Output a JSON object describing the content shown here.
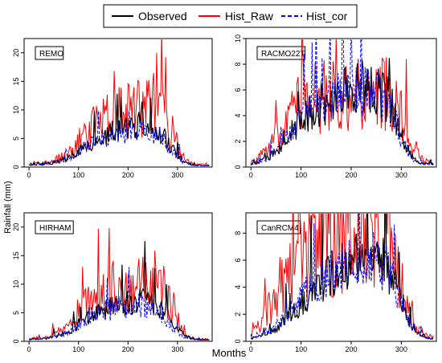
{
  "legend": {
    "entries": [
      {
        "label": "Observed",
        "color": "#000000",
        "dash": "solid"
      },
      {
        "label": "Hist_Raw",
        "color": "#ff0000",
        "dash": "solid"
      },
      {
        "label": "Hist_cor",
        "color": "#0000ff",
        "dash": "dashed"
      }
    ]
  },
  "ylabel": "Rainfall (mm)",
  "xlabel": "Months",
  "chart_data": [
    {
      "type": "line",
      "title": "REMO",
      "xlim": [
        -10,
        370
      ],
      "ylim": [
        0,
        22.5
      ],
      "xticks": [
        0,
        100,
        200,
        300
      ],
      "yticks": [
        0,
        5,
        10,
        15,
        20
      ],
      "x": [
        0,
        40,
        80,
        100,
        130,
        160,
        190,
        220,
        250,
        270,
        290,
        310,
        330,
        365
      ],
      "series": [
        {
          "name": "Observed",
          "values": [
            0.3,
            0.6,
            1.6,
            3.0,
            4.5,
            5.8,
            6.6,
            7.3,
            6.8,
            5.5,
            3.2,
            1.2,
            0.4,
            0.2
          ]
        },
        {
          "name": "Hist_Raw",
          "values": [
            0.4,
            0.8,
            2.2,
            4.5,
            6.8,
            8.5,
            9.8,
            10.5,
            10.8,
            10.5,
            6.0,
            1.5,
            0.5,
            0.3
          ]
        },
        {
          "name": "Hist_cor",
          "values": [
            0.3,
            0.6,
            1.5,
            2.8,
            4.3,
            5.4,
            6.1,
            6.5,
            6.0,
            4.8,
            2.6,
            0.9,
            0.3,
            0.2
          ]
        }
      ]
    },
    {
      "type": "line",
      "title": "RACMO22T",
      "xlim": [
        -10,
        370
      ],
      "ylim": [
        0,
        10
      ],
      "xticks": [
        0,
        100,
        200,
        300
      ],
      "yticks": [
        0,
        2,
        4,
        6,
        8,
        10
      ],
      "x": [
        0,
        30,
        60,
        80,
        100,
        130,
        160,
        190,
        220,
        250,
        280,
        300,
        320,
        340,
        365
      ],
      "series": [
        {
          "name": "Observed",
          "values": [
            0.2,
            0.6,
            1.5,
            2.6,
            3.6,
            4.6,
            5.2,
            5.8,
            6.2,
            6.0,
            5.0,
            2.5,
            0.8,
            0.3,
            0.2
          ]
        },
        {
          "name": "Hist_Raw",
          "values": [
            0.3,
            1.2,
            2.8,
            4.5,
            5.2,
            5.4,
            5.6,
            5.8,
            6.0,
            5.8,
            5.4,
            4.0,
            2.0,
            0.6,
            0.3
          ]
        },
        {
          "name": "Hist_cor",
          "values": [
            0.2,
            0.6,
            1.6,
            2.8,
            3.8,
            4.7,
            5.3,
            5.7,
            5.9,
            5.6,
            4.5,
            2.2,
            0.7,
            0.3,
            0.2
          ]
        }
      ]
    },
    {
      "type": "line",
      "title": "HIRHAM",
      "xlim": [
        -10,
        370
      ],
      "ylim": [
        0,
        22.5
      ],
      "xticks": [
        0,
        100,
        200,
        300
      ],
      "yticks": [
        0,
        5,
        10,
        15,
        20
      ],
      "x": [
        0,
        40,
        80,
        100,
        130,
        160,
        190,
        220,
        250,
        270,
        290,
        310,
        330,
        365
      ],
      "series": [
        {
          "name": "Observed",
          "values": [
            0.3,
            0.6,
            1.6,
            3.0,
            4.5,
            5.8,
            6.6,
            7.0,
            6.6,
            5.6,
            3.4,
            1.3,
            0.4,
            0.2
          ]
        },
        {
          "name": "Hist_Raw",
          "values": [
            0.4,
            0.8,
            2.5,
            5.0,
            7.0,
            8.8,
            10.0,
            11.0,
            11.8,
            11.0,
            6.0,
            1.5,
            0.5,
            0.3
          ]
        },
        {
          "name": "Hist_cor",
          "values": [
            0.3,
            0.6,
            1.5,
            2.9,
            4.4,
            5.5,
            6.1,
            6.4,
            5.8,
            4.6,
            2.5,
            0.9,
            0.3,
            0.2
          ]
        }
      ]
    },
    {
      "type": "line",
      "title": "CanRCM4",
      "xlim": [
        -10,
        370
      ],
      "ylim": [
        0,
        9.5
      ],
      "xticks": [
        0,
        100,
        200,
        300
      ],
      "yticks": [
        0,
        2,
        4,
        6,
        8
      ],
      "x": [
        0,
        30,
        60,
        90,
        120,
        150,
        180,
        210,
        240,
        270,
        290,
        310,
        330,
        350,
        365
      ],
      "series": [
        {
          "name": "Observed",
          "values": [
            0.2,
            0.5,
            1.2,
            2.5,
            3.6,
            4.6,
            5.4,
            6.0,
            6.2,
            5.6,
            4.0,
            2.0,
            0.7,
            0.3,
            0.2
          ]
        },
        {
          "name": "Hist_Raw",
          "values": [
            0.4,
            2.0,
            4.2,
            5.6,
            6.4,
            7.0,
            7.3,
            7.6,
            7.8,
            7.2,
            5.5,
            3.0,
            1.0,
            0.4,
            0.3
          ]
        },
        {
          "name": "Hist_cor",
          "values": [
            0.2,
            0.6,
            1.4,
            2.8,
            3.9,
            4.9,
            5.5,
            6.0,
            6.1,
            5.4,
            3.8,
            1.9,
            0.6,
            0.3,
            0.2
          ]
        }
      ]
    }
  ]
}
